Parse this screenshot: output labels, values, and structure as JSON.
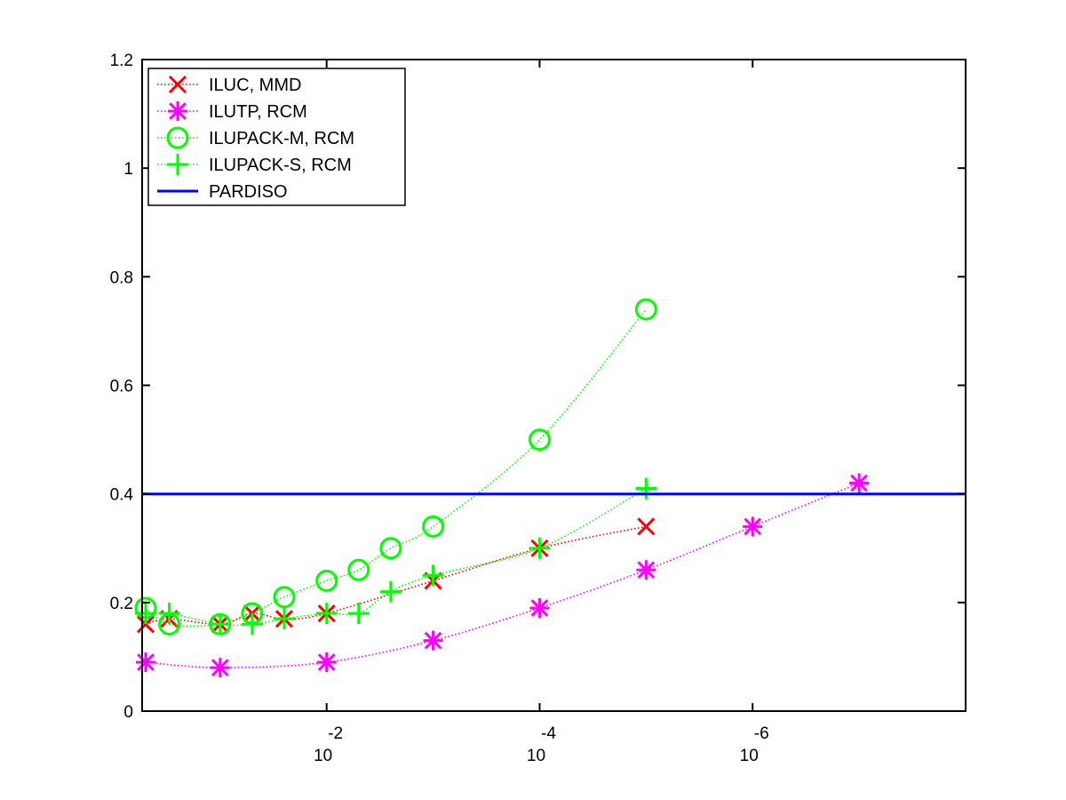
{
  "chart_data": {
    "type": "line",
    "x_scale": "log-reversed",
    "xlim": [
      0.54,
      1e-08
    ],
    "ylim": [
      0,
      1.2
    ],
    "y_ticks": [
      0,
      0.2,
      0.4,
      0.6,
      0.8,
      1,
      1.2
    ],
    "y_tick_labels": [
      "0",
      "0.2",
      "0.4",
      "0.6",
      "0.8",
      "1",
      "1.2"
    ],
    "x_ticks": [
      0.01,
      0.0001,
      1e-06
    ],
    "x_tick_base": "10",
    "x_tick_exponents": [
      "-2",
      "-4",
      "-6"
    ],
    "grid": false,
    "legend_position": "top-left",
    "series": [
      {
        "name": "ILUC, MMD",
        "color": "#ff0000",
        "marker": "x",
        "line": "dotted",
        "x": [
          0.5,
          0.3,
          0.1,
          0.05,
          0.025,
          0.01,
          0.001,
          0.0001,
          1e-05
        ],
        "y": [
          0.16,
          0.17,
          0.16,
          0.18,
          0.17,
          0.18,
          0.24,
          0.3,
          0.34
        ]
      },
      {
        "name": "ILUTP, RCM",
        "color": "#ff00ff",
        "marker": "asterisk",
        "line": "dotted",
        "x": [
          0.5,
          0.1,
          0.01,
          0.001,
          0.0001,
          1e-05,
          1e-06,
          1e-07
        ],
        "y": [
          0.09,
          0.08,
          0.09,
          0.13,
          0.19,
          0.26,
          0.34,
          0.42
        ]
      },
      {
        "name": "ILUPACK-M, RCM",
        "color": "#00ff00",
        "marker": "circle",
        "line": "dotted",
        "x": [
          0.5,
          0.3,
          0.1,
          0.05,
          0.025,
          0.01,
          0.005,
          0.0025,
          0.001,
          0.0001,
          1e-05
        ],
        "y": [
          0.19,
          0.16,
          0.16,
          0.18,
          0.21,
          0.24,
          0.26,
          0.3,
          0.34,
          0.5,
          0.74
        ]
      },
      {
        "name": "ILUPACK-S, RCM",
        "color": "#00ff00",
        "marker": "plus",
        "line": "dotted",
        "x": [
          0.5,
          0.3,
          0.1,
          0.05,
          0.025,
          0.01,
          0.005,
          0.0025,
          0.001,
          0.0001,
          1e-05
        ],
        "y": [
          0.18,
          0.18,
          0.16,
          0.16,
          0.17,
          0.18,
          0.18,
          0.22,
          0.25,
          0.3,
          0.41
        ]
      },
      {
        "name": "PARDISO",
        "color": "#0000ff",
        "marker": "none",
        "line": "solid",
        "x": [
          0.54,
          1e-08
        ],
        "y": [
          0.4,
          0.4
        ]
      }
    ]
  }
}
